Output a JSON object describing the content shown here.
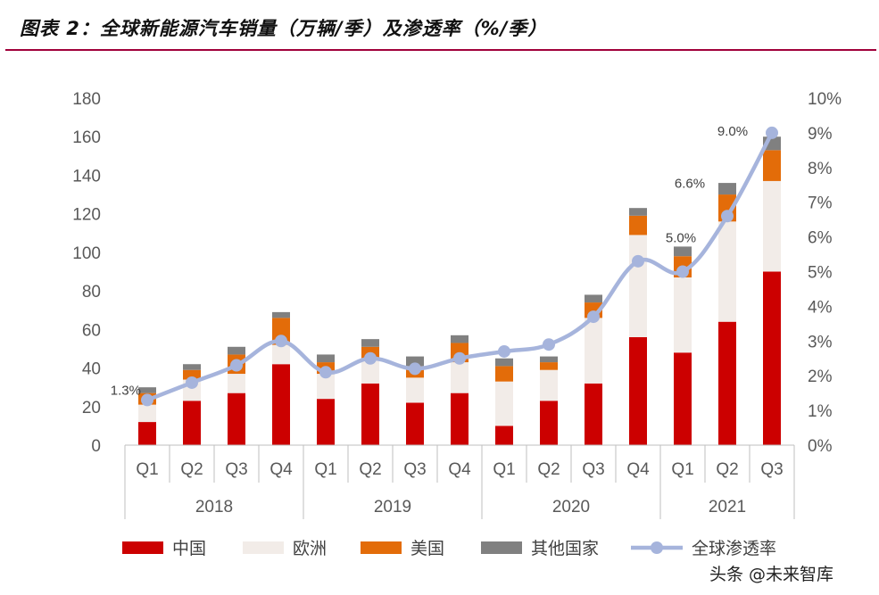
{
  "chart_data": {
    "type": "bar",
    "title": "图表 2：全球新能源汽车销量（万辆/季）及渗透率（%/季）",
    "categories": [
      "Q1",
      "Q2",
      "Q3",
      "Q4",
      "Q1",
      "Q2",
      "Q3",
      "Q4",
      "Q1",
      "Q2",
      "Q3",
      "Q4",
      "Q1",
      "Q2",
      "Q3"
    ],
    "years": [
      {
        "label": "2018",
        "quarters": 4
      },
      {
        "label": "2019",
        "quarters": 4
      },
      {
        "label": "2020",
        "quarters": 4
      },
      {
        "label": "2021",
        "quarters": 3
      }
    ],
    "series": [
      {
        "name": "中国",
        "color": "#cc0000",
        "values": [
          12,
          23,
          27,
          42,
          24,
          32,
          22,
          27,
          10,
          23,
          32,
          56,
          48,
          64,
          90
        ]
      },
      {
        "name": "欧洲",
        "color": "#f2ece8",
        "values": [
          9,
          11,
          10,
          10,
          13,
          12,
          13,
          16,
          23,
          16,
          34,
          53,
          39,
          52,
          47
        ]
      },
      {
        "name": "美国",
        "color": "#e36c09",
        "values": [
          6,
          5,
          10,
          14,
          6,
          7,
          6,
          10,
          8,
          4,
          8,
          10,
          11,
          14,
          16
        ]
      },
      {
        "name": "其他国家",
        "color": "#808080",
        "values": [
          3,
          3,
          4,
          3,
          4,
          4,
          5,
          4,
          4,
          3,
          4,
          4,
          5,
          6,
          7
        ]
      }
    ],
    "line": {
      "name": "全球渗透率",
      "color": "#a6b4dc",
      "values": [
        1.3,
        1.8,
        2.3,
        3.0,
        2.1,
        2.5,
        2.2,
        2.5,
        2.7,
        2.9,
        3.7,
        5.3,
        5.0,
        6.6,
        9.0
      ]
    },
    "labels": [
      {
        "index": 0,
        "text": "1.3%"
      },
      {
        "index": 12,
        "text": "5.0%"
      },
      {
        "index": 13,
        "text": "6.6%"
      },
      {
        "index": 14,
        "text": "9.0%"
      }
    ],
    "ylim": [
      0,
      180
    ],
    "yticks": [
      0,
      20,
      40,
      60,
      80,
      100,
      120,
      140,
      160,
      180
    ],
    "y2lim": [
      0,
      10
    ],
    "y2ticks": [
      "0%",
      "1%",
      "2%",
      "3%",
      "4%",
      "5%",
      "6%",
      "7%",
      "8%",
      "9%",
      "10%"
    ],
    "legend_position": "bottom"
  },
  "watermark": {
    "text": "头条 @未来智库"
  }
}
